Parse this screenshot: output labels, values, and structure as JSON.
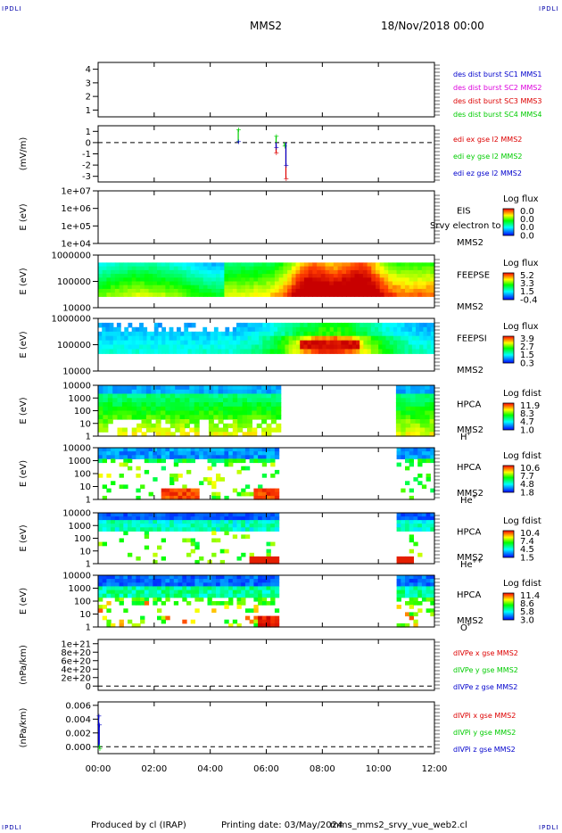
{
  "header": {
    "corner_tl": "IPDLI",
    "corner_tr": "IPDLI",
    "corner_bl": "IPDLI",
    "corner_br": "IPDLI",
    "title": "MMS2",
    "datetime": "18/Nov/2018 00:00"
  },
  "footer": {
    "produced": "Produced by cl (IRAP)",
    "printing": "Printing date: 03/May/2024",
    "script": "mms_mms2_srvy_vue_web2.cl"
  },
  "colors": {
    "blue": "#0000ff",
    "green": "#00cc00",
    "red": "#dd0000",
    "magenta": "#dd00dd",
    "dark_blue": "#0000aa"
  },
  "chart_data": [
    {
      "id": "des",
      "type": "line",
      "yticks": [
        "4",
        "3",
        "2",
        "1"
      ],
      "ylabel": "",
      "ylim": [
        0.5,
        4.5
      ],
      "legend": [
        {
          "name": "des dist burst SC1 MMS1",
          "color": "#0000cc"
        },
        {
          "name": "des dist burst SC2 MMS2",
          "color": "#dd00dd"
        },
        {
          "name": "des dist burst SC3 MMS3",
          "color": "#dd0000"
        },
        {
          "name": "des dist burst SC4 MMS4",
          "color": "#00cc00"
        }
      ],
      "series": []
    },
    {
      "id": "edi",
      "type": "line",
      "ylabel": "(mV/m)",
      "yticks": [
        "1",
        "0",
        "-1",
        "-2",
        "-3"
      ],
      "ylim": [
        -3.5,
        1.5
      ],
      "legend": [
        {
          "name": "edi ex gse l2 MMS2",
          "color": "#dd0000"
        },
        {
          "name": "edi ey gse l2 MMS2",
          "color": "#00cc00"
        },
        {
          "name": "edi ez gse l2 MMS2",
          "color": "#0000cc"
        }
      ],
      "series": [
        {
          "color": "#dd0000",
          "points": [
            [
              6.35,
              -0.9
            ],
            [
              6.7,
              -3.2
            ]
          ]
        },
        {
          "color": "#00cc00",
          "points": [
            [
              5.0,
              1.2
            ],
            [
              6.35,
              0.6
            ],
            [
              6.65,
              -0.3
            ]
          ]
        },
        {
          "color": "#0000cc",
          "points": [
            [
              5.0,
              0.1
            ],
            [
              6.35,
              -0.4
            ],
            [
              6.7,
              -2.0
            ]
          ]
        }
      ]
    },
    {
      "id": "eis",
      "type": "heatmap",
      "ylabel": "E (eV)",
      "yticks": [
        "1e+07",
        "1e+06",
        "1e+05",
        "1e+04"
      ],
      "instrument": [
        "EIS",
        "MMS2"
      ],
      "overlay_text": "Srvy electron to",
      "colorbar_title": "Log flux",
      "colorbar_values": [
        "0.0",
        "0.0",
        "0.0",
        "0.0"
      ]
    },
    {
      "id": "feepse",
      "type": "heatmap",
      "ylabel": "E (eV)",
      "yticks": [
        "1000000",
        "100000",
        "10000"
      ],
      "instrument": [
        "FEEPSE",
        "MMS2"
      ],
      "colorbar_title": "Log flux",
      "colorbar_values": [
        "5.2",
        "3.3",
        "1.5",
        "-0.4"
      ]
    },
    {
      "id": "feepsi",
      "type": "heatmap",
      "ylabel": "E (eV)",
      "yticks": [
        "1000000",
        "100000",
        "10000"
      ],
      "instrument": [
        "FEEPSI",
        "MMS2"
      ],
      "colorbar_title": "Log flux",
      "colorbar_values": [
        "3.9",
        "2.7",
        "1.5",
        "0.3"
      ]
    },
    {
      "id": "hpca_h",
      "type": "heatmap",
      "ylabel": "E (eV)",
      "yticks": [
        "10000",
        "1000",
        "100",
        "10",
        "1"
      ],
      "instrument": [
        "HPCA",
        "MMS2"
      ],
      "species": "H",
      "species_sup": "+",
      "colorbar_title": "Log fdist",
      "colorbar_values": [
        "11.9",
        "8.3",
        "4.7",
        "1.0"
      ]
    },
    {
      "id": "hpca_he",
      "type": "heatmap",
      "ylabel": "E (eV)",
      "yticks": [
        "10000",
        "1000",
        "100",
        "10",
        "1"
      ],
      "instrument": [
        "HPCA",
        "MMS2"
      ],
      "species": "He",
      "species_sup": "+",
      "colorbar_title": "Log fdist",
      "colorbar_values": [
        "10.6",
        "7.7",
        "4.8",
        "1.8"
      ]
    },
    {
      "id": "hpca_he2",
      "type": "heatmap",
      "ylabel": "E (eV)",
      "yticks": [
        "10000",
        "1000",
        "100",
        "10",
        "1"
      ],
      "instrument": [
        "HPCA",
        "MMS2"
      ],
      "species": "He",
      "species_sup": "++",
      "colorbar_title": "Log fdist",
      "colorbar_values": [
        "10.4",
        "7.4",
        "4.5",
        "1.5"
      ]
    },
    {
      "id": "hpca_o",
      "type": "heatmap",
      "ylabel": "E (eV)",
      "yticks": [
        "10000",
        "1000",
        "100",
        "10",
        "1"
      ],
      "instrument": [
        "HPCA",
        "MMS2"
      ],
      "species": "O",
      "species_sup": "+",
      "colorbar_title": "Log fdist",
      "colorbar_values": [
        "11.4",
        "8.6",
        "5.8",
        "3.0"
      ]
    },
    {
      "id": "divpe",
      "type": "line",
      "ylabel": "(nPa/km)",
      "yticks": [
        "1e+21",
        "8e+20",
        "6e+20",
        "4e+20",
        "2e+20",
        "0"
      ],
      "ylim": [
        -1e+20,
        1.1e+21
      ],
      "legend": [
        {
          "name": "dIVPe x gse MMS2",
          "color": "#dd0000"
        },
        {
          "name": "dIVPe y gse MMS2",
          "color": "#00cc00"
        },
        {
          "name": "dIVPe z gse MMS2",
          "color": "#0000cc"
        }
      ],
      "series": []
    },
    {
      "id": "divpi",
      "type": "line",
      "ylabel": "(nPa/km)",
      "yticks": [
        "0.006",
        "0.004",
        "0.002",
        "0.000"
      ],
      "ylim": [
        -0.001,
        0.0065
      ],
      "legend": [
        {
          "name": "dIVPi x gse MMS2",
          "color": "#dd0000"
        },
        {
          "name": "dIVPi y gse MMS2",
          "color": "#00cc00"
        },
        {
          "name": "dIVPi z gse MMS2",
          "color": "#0000cc"
        }
      ],
      "series": [
        {
          "color": "#0000cc",
          "points": [
            [
              0.02,
              0.0045
            ],
            [
              0.04,
              0.0032
            ]
          ]
        },
        {
          "color": "#00cc00",
          "points": [
            [
              0.03,
              0.0001
            ],
            [
              0.05,
              -0.0002
            ]
          ]
        }
      ]
    }
  ],
  "xaxis": {
    "ticks": [
      "00:00",
      "02:00",
      "04:00",
      "06:00",
      "08:00",
      "10:00",
      "12:00"
    ],
    "range_hours": [
      0,
      12
    ],
    "data_gaps_hours": [
      [
        6.5,
        10.6
      ]
    ]
  }
}
